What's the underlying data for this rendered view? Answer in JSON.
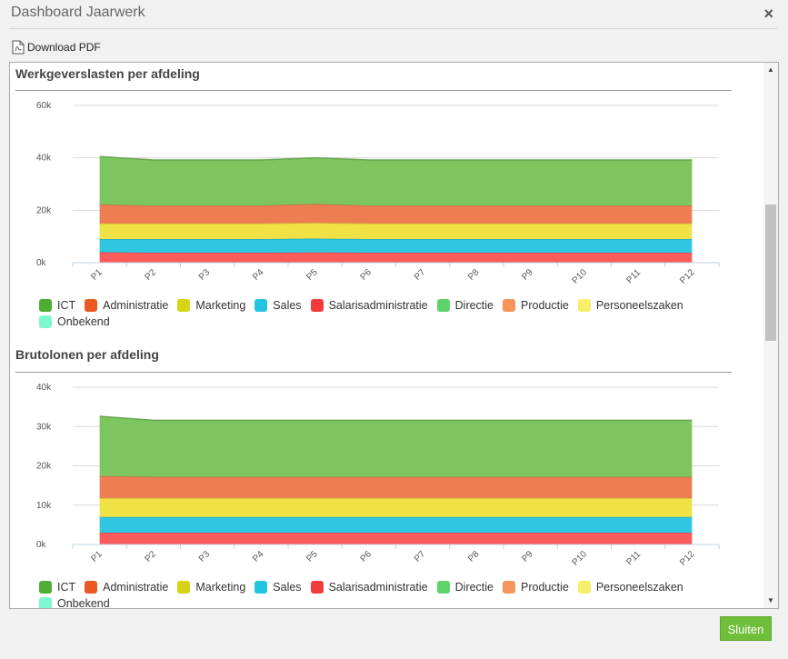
{
  "dialog": {
    "title": "Dashboard Jaarwerk",
    "close_glyph": "×",
    "download_label": "Download PDF",
    "sluiten_label": "Sluiten"
  },
  "colors": {
    "ICT": "#7cc55f",
    "Administratie": "#ee7d52",
    "Marketing": "#f0e145",
    "Sales": "#2ec6e0",
    "Salarisadministratie": "#fc5b5b",
    "Directie": "#5cd46a",
    "Productie": "#f6955a",
    "Personeelszaken": "#f7ef6a",
    "Onbekend": "#7ff7d0"
  },
  "legend_colors": {
    "ICT": "#4cae32",
    "Administratie": "#ea5a22",
    "Marketing": "#d6d414",
    "Sales": "#22c4e0",
    "Salarisadministratie": "#f23b3b",
    "Directie": "#5cd46a",
    "Productie": "#f6955a",
    "Personeelszaken": "#f7ef6a",
    "Onbekend": "#7ff7d0"
  },
  "chart_data": [
    {
      "type": "area",
      "stacked": true,
      "title": "Werkgeverslasten per afdeling",
      "categories": [
        "P1",
        "P2",
        "P3",
        "P4",
        "P5",
        "P6",
        "P7",
        "P8",
        "P9",
        "P10",
        "P11",
        "P12"
      ],
      "ylim": [
        0,
        60000
      ],
      "yticks": [
        "0k",
        "20k",
        "40k",
        "60k"
      ],
      "grid": true,
      "legend_position": "bottom",
      "series": [
        {
          "name": "Salarisadministratie",
          "values": [
            4000,
            3800,
            3800,
            3800,
            3900,
            3800,
            3800,
            3800,
            3800,
            3800,
            3800,
            3800
          ]
        },
        {
          "name": "Sales",
          "values": [
            5000,
            5200,
            5200,
            5200,
            5300,
            5200,
            5200,
            5200,
            5200,
            5200,
            5200,
            5200
          ]
        },
        {
          "name": "Marketing",
          "values": [
            6000,
            6000,
            6000,
            6000,
            6000,
            6000,
            6000,
            6000,
            6000,
            6000,
            6000,
            6000
          ]
        },
        {
          "name": "Administratie",
          "values": [
            7200,
            6800,
            6800,
            6800,
            7200,
            6800,
            6800,
            6800,
            6800,
            6800,
            6800,
            6800
          ]
        },
        {
          "name": "ICT",
          "values": [
            18300,
            17400,
            17400,
            17400,
            17600,
            17400,
            17400,
            17400,
            17400,
            17400,
            17400,
            17400
          ]
        }
      ],
      "legend": [
        "ICT",
        "Administratie",
        "Marketing",
        "Sales",
        "Salarisadministratie",
        "Directie",
        "Productie",
        "Personeelszaken",
        "Onbekend"
      ]
    },
    {
      "type": "area",
      "stacked": true,
      "title": "Brutolonen per afdeling",
      "categories": [
        "P1",
        "P2",
        "P3",
        "P4",
        "P5",
        "P6",
        "P7",
        "P8",
        "P9",
        "P10",
        "P11",
        "P12"
      ],
      "ylim": [
        0,
        40000
      ],
      "yticks": [
        "0k",
        "10k",
        "20k",
        "30k",
        "40k"
      ],
      "grid": true,
      "legend_position": "bottom",
      "series": [
        {
          "name": "Salarisadministratie",
          "values": [
            3000,
            3000,
            3000,
            3000,
            3000,
            3000,
            3000,
            3000,
            3000,
            3000,
            3000,
            3000
          ]
        },
        {
          "name": "Sales",
          "values": [
            4000,
            4000,
            4000,
            4000,
            4000,
            4000,
            4000,
            4000,
            4000,
            4000,
            4000,
            4000
          ]
        },
        {
          "name": "Marketing",
          "values": [
            4800,
            4800,
            4800,
            4800,
            4800,
            4800,
            4800,
            4800,
            4800,
            4800,
            4800,
            4800
          ]
        },
        {
          "name": "Administratie",
          "values": [
            5600,
            5400,
            5400,
            5400,
            5400,
            5400,
            5400,
            5400,
            5400,
            5400,
            5400,
            5400
          ]
        },
        {
          "name": "ICT",
          "values": [
            15200,
            14400,
            14400,
            14400,
            14400,
            14400,
            14400,
            14400,
            14400,
            14400,
            14400,
            14400
          ]
        }
      ],
      "legend": [
        "ICT",
        "Administratie",
        "Marketing",
        "Sales",
        "Salarisadministratie",
        "Directie",
        "Productie",
        "Personeelszaken",
        "Onbekend"
      ]
    }
  ]
}
